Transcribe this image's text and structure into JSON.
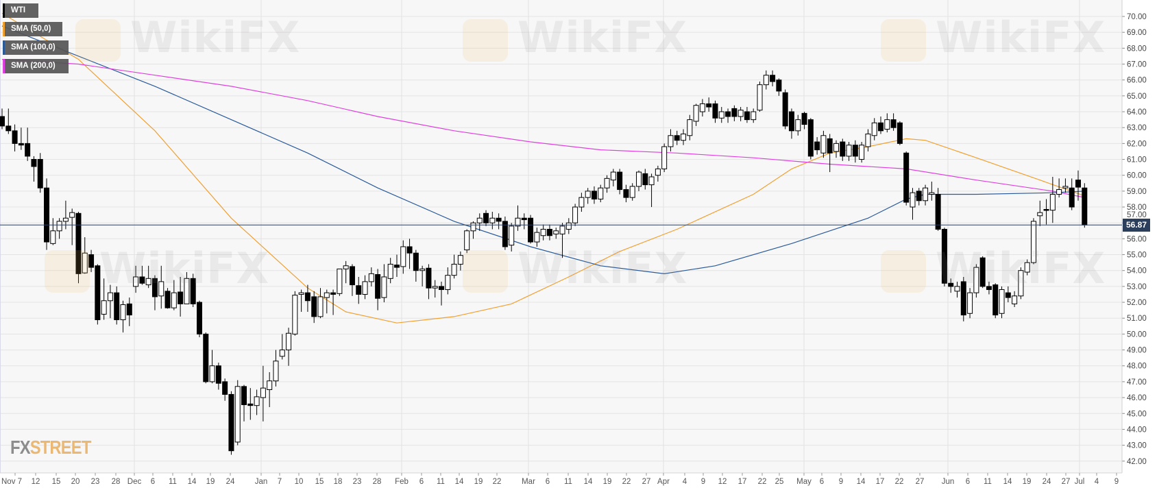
{
  "legend": [
    {
      "label": "WTI",
      "color": "#000000"
    },
    {
      "label": "SMA (50,0)",
      "color": "#f0a030"
    },
    {
      "label": "SMA (100,0)",
      "color": "#2a5a9a"
    },
    {
      "label": "SMA (200,0)",
      "color": "#e040e0"
    }
  ],
  "watermark": "WikiFX",
  "logo": {
    "part1": "FX",
    "part2": "STREET"
  },
  "last_price_label": "56.87",
  "chart_data": {
    "type": "candlestick",
    "title": "",
    "instrument": "WTI",
    "ylim": [
      42,
      70
    ],
    "y_ticks": [
      "70.00",
      "69.00",
      "68.00",
      "67.00",
      "66.00",
      "65.00",
      "64.00",
      "63.00",
      "62.00",
      "61.00",
      "60.00",
      "59.00",
      "58.00",
      "57.00",
      "56.00",
      "55.00",
      "54.00",
      "53.00",
      "52.00",
      "51.00",
      "50.00",
      "49.00",
      "48.00",
      "47.00",
      "46.00",
      "45.00",
      "44.00",
      "43.00",
      "42.00"
    ],
    "x_ticks": [
      "Nov 7",
      "12",
      "15",
      "20",
      "23",
      "28",
      "Dec",
      "6",
      "11",
      "14",
      "19",
      "24",
      "Jan",
      "7",
      "10",
      "15",
      "18",
      "23",
      "28",
      "Feb",
      "6",
      "11",
      "14",
      "19",
      "22",
      "Mar",
      "6",
      "11",
      "14",
      "19",
      "22",
      "27",
      "Apr",
      "4",
      "9",
      "12",
      "17",
      "22",
      "25",
      "May",
      "6",
      "9",
      "14",
      "17",
      "22",
      "27",
      "Jun",
      "6",
      "11",
      "14",
      "19",
      "24",
      "27",
      "Jul",
      "4",
      "9"
    ],
    "grid": true,
    "last_price": 56.87,
    "colors": {
      "up": "#ffffff",
      "down": "#000000",
      "last_price_line": "#2b3e5c"
    },
    "ohlc": [
      [
        63.7,
        64.2,
        62.9,
        63.1
      ],
      [
        63.1,
        64.2,
        62.6,
        62.8
      ],
      [
        62.8,
        63.2,
        61.5,
        62.0
      ],
      [
        62.0,
        63.0,
        61.6,
        61.9
      ],
      [
        62.0,
        63.0,
        60.9,
        61.2
      ],
      [
        61.0,
        61.2,
        59.6,
        60.55
      ],
      [
        61.0,
        61.4,
        58.9,
        59.2
      ],
      [
        59.2,
        59.8,
        55.3,
        55.8
      ],
      [
        55.7,
        57.3,
        55.6,
        56.5
      ],
      [
        56.5,
        57.3,
        56.0,
        57.1
      ],
      [
        57.1,
        58.4,
        56.6,
        57.3
      ],
      [
        57.35,
        57.9,
        55.6,
        57.65
      ],
      [
        57.6,
        57.7,
        53.2,
        53.8
      ],
      [
        53.85,
        56.1,
        53.8,
        55.1
      ],
      [
        55.0,
        55.3,
        53.9,
        54.2
      ],
      [
        54.3,
        54.4,
        50.6,
        50.9
      ],
      [
        51.25,
        53.5,
        50.9,
        52.1
      ],
      [
        52.1,
        53.1,
        51.0,
        52.6
      ],
      [
        52.6,
        53.0,
        50.6,
        50.9
      ],
      [
        50.9,
        52.1,
        50.1,
        51.85
      ],
      [
        51.9,
        52.3,
        50.5,
        51.2
      ],
      [
        53.0,
        54.3,
        52.6,
        53.6
      ],
      [
        53.6,
        54.3,
        53.1,
        53.2
      ],
      [
        53.1,
        54.3,
        52.9,
        53.5
      ],
      [
        53.5,
        53.7,
        51.5,
        52.35
      ],
      [
        52.4,
        54.3,
        51.6,
        53.3
      ],
      [
        52.7,
        52.9,
        51.6,
        51.65
      ],
      [
        51.65,
        53.4,
        51.5,
        52.6
      ],
      [
        52.65,
        53.6,
        51.1,
        51.9
      ],
      [
        51.9,
        53.9,
        51.9,
        53.5
      ],
      [
        53.5,
        53.8,
        51.7,
        51.9
      ],
      [
        52.0,
        52.1,
        49.8,
        50.0
      ],
      [
        50.0,
        50.1,
        46.9,
        47.0
      ],
      [
        47.0,
        49.0,
        46.9,
        48.0
      ],
      [
        48.0,
        48.2,
        46.5,
        46.9
      ],
      [
        47.0,
        47.2,
        45.8,
        46.2
      ],
      [
        46.2,
        46.4,
        42.4,
        42.65
      ],
      [
        43.2,
        47.1,
        43.0,
        46.7
      ],
      [
        46.7,
        46.8,
        44.5,
        45.55
      ],
      [
        45.6,
        46.6,
        44.6,
        45.5
      ],
      [
        45.5,
        46.5,
        44.9,
        46.05
      ],
      [
        46.0,
        48.0,
        44.5,
        46.6
      ],
      [
        46.5,
        47.6,
        45.4,
        47.05
      ],
      [
        47.05,
        49.0,
        46.7,
        48.3
      ],
      [
        48.6,
        50.0,
        48.4,
        49.0
      ],
      [
        49.0,
        50.4,
        48.0,
        50.05
      ],
      [
        50.0,
        52.7,
        49.9,
        52.45
      ],
      [
        52.5,
        52.8,
        51.4,
        52.6
      ],
      [
        52.6,
        53.1,
        51.4,
        52.1
      ],
      [
        52.35,
        52.7,
        50.7,
        51.1
      ],
      [
        51.1,
        52.9,
        51.0,
        52.35
      ],
      [
        52.3,
        52.8,
        51.3,
        52.6
      ],
      [
        52.6,
        52.8,
        51.2,
        52.5
      ],
      [
        52.55,
        54.1,
        52.4,
        54.1
      ],
      [
        54.1,
        54.6,
        53.2,
        54.3
      ],
      [
        54.25,
        54.4,
        52.4,
        53.1
      ],
      [
        53.05,
        53.6,
        51.9,
        52.5
      ],
      [
        52.5,
        53.7,
        52.2,
        53.3
      ],
      [
        53.3,
        54.2,
        53.0,
        53.8
      ],
      [
        53.75,
        54.1,
        51.5,
        52.25
      ],
      [
        52.3,
        54.4,
        52.0,
        53.6
      ],
      [
        53.5,
        54.8,
        53.2,
        54.4
      ],
      [
        54.35,
        55.0,
        53.6,
        54.2
      ],
      [
        54.25,
        55.9,
        53.8,
        55.5
      ],
      [
        55.5,
        56.0,
        54.1,
        55.1
      ],
      [
        55.1,
        55.3,
        53.3,
        54.0
      ],
      [
        54.0,
        54.3,
        53.0,
        54.1
      ],
      [
        54.15,
        54.4,
        52.2,
        52.9
      ],
      [
        52.9,
        53.4,
        52.3,
        53.0
      ],
      [
        53.0,
        53.3,
        51.8,
        52.8
      ],
      [
        52.8,
        54.2,
        52.5,
        53.7
      ],
      [
        53.7,
        55.0,
        53.5,
        54.4
      ],
      [
        54.4,
        55.2,
        54.0,
        54.95
      ],
      [
        55.3,
        56.6,
        55.1,
        56.5
      ],
      [
        56.5,
        57.1,
        56.0,
        57.0
      ],
      [
        57.0,
        57.6,
        56.5,
        57.3
      ],
      [
        57.6,
        57.8,
        56.8,
        57.0
      ],
      [
        57.0,
        57.7,
        56.6,
        57.3
      ],
      [
        57.3,
        57.6,
        56.6,
        57.1
      ],
      [
        57.1,
        57.4,
        55.3,
        55.5
      ],
      [
        55.6,
        57.0,
        55.2,
        56.8
      ],
      [
        56.8,
        58.1,
        56.5,
        57.3
      ],
      [
        57.3,
        57.6,
        56.6,
        57.2
      ],
      [
        57.3,
        57.5,
        55.7,
        55.8
      ],
      [
        55.8,
        56.7,
        55.5,
        56.4
      ],
      [
        56.2,
        56.9,
        55.9,
        56.6
      ],
      [
        56.6,
        56.9,
        55.9,
        56.2
      ],
      [
        56.3,
        56.7,
        56.0,
        56.5
      ],
      [
        56.3,
        57.0,
        54.8,
        56.8
      ],
      [
        56.6,
        57.3,
        56.3,
        57.0
      ],
      [
        57.0,
        58.2,
        56.8,
        58.0
      ],
      [
        58.0,
        58.9,
        57.7,
        58.6
      ],
      [
        58.6,
        59.2,
        58.2,
        59.0
      ],
      [
        59.0,
        59.3,
        58.2,
        58.5
      ],
      [
        58.5,
        59.4,
        58.3,
        59.2
      ],
      [
        59.2,
        60.0,
        58.9,
        59.8
      ],
      [
        59.7,
        60.4,
        59.3,
        60.2
      ],
      [
        60.2,
        60.4,
        58.8,
        59.1
      ],
      [
        59.1,
        59.4,
        58.3,
        58.6
      ],
      [
        58.6,
        59.5,
        58.4,
        59.3
      ],
      [
        59.3,
        60.3,
        59.0,
        60.2
      ],
      [
        60.1,
        60.4,
        59.1,
        59.4
      ],
      [
        59.4,
        60.1,
        58.0,
        59.9
      ],
      [
        60.0,
        60.6,
        59.6,
        60.4
      ],
      [
        60.4,
        62.0,
        60.2,
        61.8
      ],
      [
        61.8,
        62.9,
        61.5,
        62.5
      ],
      [
        62.5,
        62.8,
        61.9,
        62.2
      ],
      [
        62.2,
        62.9,
        61.9,
        62.6
      ],
      [
        62.5,
        63.8,
        62.2,
        63.5
      ],
      [
        63.4,
        64.5,
        63.1,
        64.4
      ],
      [
        64.0,
        64.8,
        63.7,
        64.5
      ],
      [
        64.5,
        64.9,
        64.0,
        64.3
      ],
      [
        64.5,
        64.7,
        63.3,
        63.6
      ],
      [
        63.6,
        64.3,
        63.3,
        64.0
      ],
      [
        64.0,
        64.2,
        63.3,
        63.7
      ],
      [
        64.2,
        64.4,
        63.4,
        63.7
      ],
      [
        63.7,
        64.3,
        63.4,
        64.1
      ],
      [
        64.0,
        64.3,
        63.3,
        63.5
      ],
      [
        63.5,
        64.2,
        63.3,
        64.0
      ],
      [
        64.1,
        65.9,
        64.0,
        65.7
      ],
      [
        65.7,
        66.6,
        65.4,
        66.3
      ],
      [
        66.3,
        66.6,
        65.6,
        65.9
      ],
      [
        66.0,
        66.1,
        65.0,
        65.3
      ],
      [
        65.2,
        65.4,
        62.9,
        63.1
      ],
      [
        64.0,
        64.2,
        62.3,
        62.8
      ],
      [
        62.8,
        63.8,
        62.5,
        63.5
      ],
      [
        63.9,
        64.0,
        62.9,
        63.2
      ],
      [
        63.5,
        63.6,
        61.0,
        61.2
      ],
      [
        62.1,
        62.4,
        61.3,
        61.6
      ],
      [
        61.4,
        62.8,
        61.1,
        62.5
      ],
      [
        62.3,
        62.6,
        60.2,
        61.4
      ],
      [
        61.5,
        62.2,
        61.1,
        62.0
      ],
      [
        62.1,
        62.3,
        60.9,
        61.2
      ],
      [
        61.2,
        62.1,
        60.9,
        61.9
      ],
      [
        61.9,
        62.2,
        60.8,
        61.2
      ],
      [
        61.0,
        62.1,
        60.8,
        61.9
      ],
      [
        61.8,
        62.9,
        61.5,
        62.6
      ],
      [
        62.5,
        63.6,
        62.2,
        63.3
      ],
      [
        63.3,
        63.7,
        62.6,
        62.8
      ],
      [
        62.9,
        63.9,
        62.7,
        63.5
      ],
      [
        63.5,
        63.9,
        62.8,
        63.0
      ],
      [
        63.3,
        63.4,
        61.9,
        62.0
      ],
      [
        61.4,
        61.5,
        58.1,
        58.3
      ],
      [
        58.0,
        59.2,
        57.2,
        58.9
      ],
      [
        59.0,
        59.2,
        58.1,
        58.4
      ],
      [
        58.4,
        59.4,
        58.1,
        59.2
      ],
      [
        58.8,
        59.6,
        58.4,
        58.9
      ],
      [
        58.8,
        59.2,
        56.5,
        56.6
      ],
      [
        56.6,
        56.7,
        53.0,
        53.2
      ],
      [
        53.2,
        53.5,
        52.6,
        53.0
      ],
      [
        52.7,
        53.3,
        52.3,
        53.0
      ],
      [
        53.3,
        53.6,
        50.8,
        51.2
      ],
      [
        51.3,
        52.9,
        51.0,
        52.6
      ],
      [
        52.6,
        54.4,
        52.3,
        54.2
      ],
      [
        54.8,
        54.9,
        52.9,
        53.0
      ],
      [
        53.0,
        53.3,
        52.5,
        52.8
      ],
      [
        53.1,
        53.2,
        51.0,
        51.2
      ],
      [
        51.3,
        53.0,
        51.0,
        52.8
      ],
      [
        52.6,
        53.0,
        52.0,
        52.3
      ],
      [
        51.9,
        52.7,
        51.7,
        52.4
      ],
      [
        52.4,
        54.2,
        52.2,
        54.0
      ],
      [
        53.9,
        54.7,
        53.7,
        54.5
      ],
      [
        54.5,
        57.3,
        54.4,
        57.1
      ],
      [
        57.45,
        58.4,
        56.8,
        57.65
      ],
      [
        57.85,
        58.5,
        56.9,
        57.8
      ],
      [
        57.8,
        59.9,
        57.0,
        58.8
      ],
      [
        58.8,
        59.8,
        58.6,
        59.1
      ],
      [
        59.2,
        59.8,
        58.9,
        59.3
      ],
      [
        59.2,
        59.8,
        57.8,
        58.0
      ],
      [
        59.7,
        60.3,
        58.4,
        59.25
      ],
      [
        59.2,
        59.5,
        56.7,
        56.87
      ]
    ],
    "series": [
      {
        "name": "SMA (50,0)",
        "color": "#f0a030",
        "points": [
          [
            0,
            70.2
          ],
          [
            12,
            67.3
          ],
          [
            24,
            62.8
          ],
          [
            36,
            57.3
          ],
          [
            48,
            52.9
          ],
          [
            54,
            51.4
          ],
          [
            62,
            50.7
          ],
          [
            71,
            51.1
          ],
          [
            80,
            51.9
          ],
          [
            89,
            53.6
          ],
          [
            97,
            55.2
          ],
          [
            106,
            56.6
          ],
          [
            118,
            58.8
          ],
          [
            124,
            60.4
          ],
          [
            130,
            61.4
          ],
          [
            136,
            61.8
          ],
          [
            142,
            62.3
          ],
          [
            145,
            62.2
          ],
          [
            153,
            61.1
          ],
          [
            163,
            59.7
          ],
          [
            170,
            58.7
          ]
        ]
      },
      {
        "name": "SMA (100,0)",
        "color": "#2a5a9a",
        "points": [
          [
            0,
            69.4
          ],
          [
            12,
            67.5
          ],
          [
            24,
            65.6
          ],
          [
            36,
            63.5
          ],
          [
            48,
            61.4
          ],
          [
            59,
            59.2
          ],
          [
            71,
            57.1
          ],
          [
            83,
            55.5
          ],
          [
            94,
            54.3
          ],
          [
            104,
            53.8
          ],
          [
            112,
            54.3
          ],
          [
            124,
            55.7
          ],
          [
            136,
            57.3
          ],
          [
            142,
            58.5
          ],
          [
            145,
            58.8
          ],
          [
            153,
            58.8
          ],
          [
            165,
            58.9
          ],
          [
            170,
            59.0
          ]
        ]
      },
      {
        "name": "SMA (200,0)",
        "color": "#e040e0",
        "points": [
          [
            0,
            67.3
          ],
          [
            12,
            67.0
          ],
          [
            24,
            66.3
          ],
          [
            36,
            65.6
          ],
          [
            48,
            64.7
          ],
          [
            59,
            63.7
          ],
          [
            71,
            62.8
          ],
          [
            83,
            62.1
          ],
          [
            94,
            61.6
          ],
          [
            106,
            61.4
          ],
          [
            118,
            61.1
          ],
          [
            130,
            60.7
          ],
          [
            142,
            60.4
          ],
          [
            153,
            59.7
          ],
          [
            165,
            59.0
          ],
          [
            170,
            58.6
          ]
        ]
      }
    ]
  }
}
